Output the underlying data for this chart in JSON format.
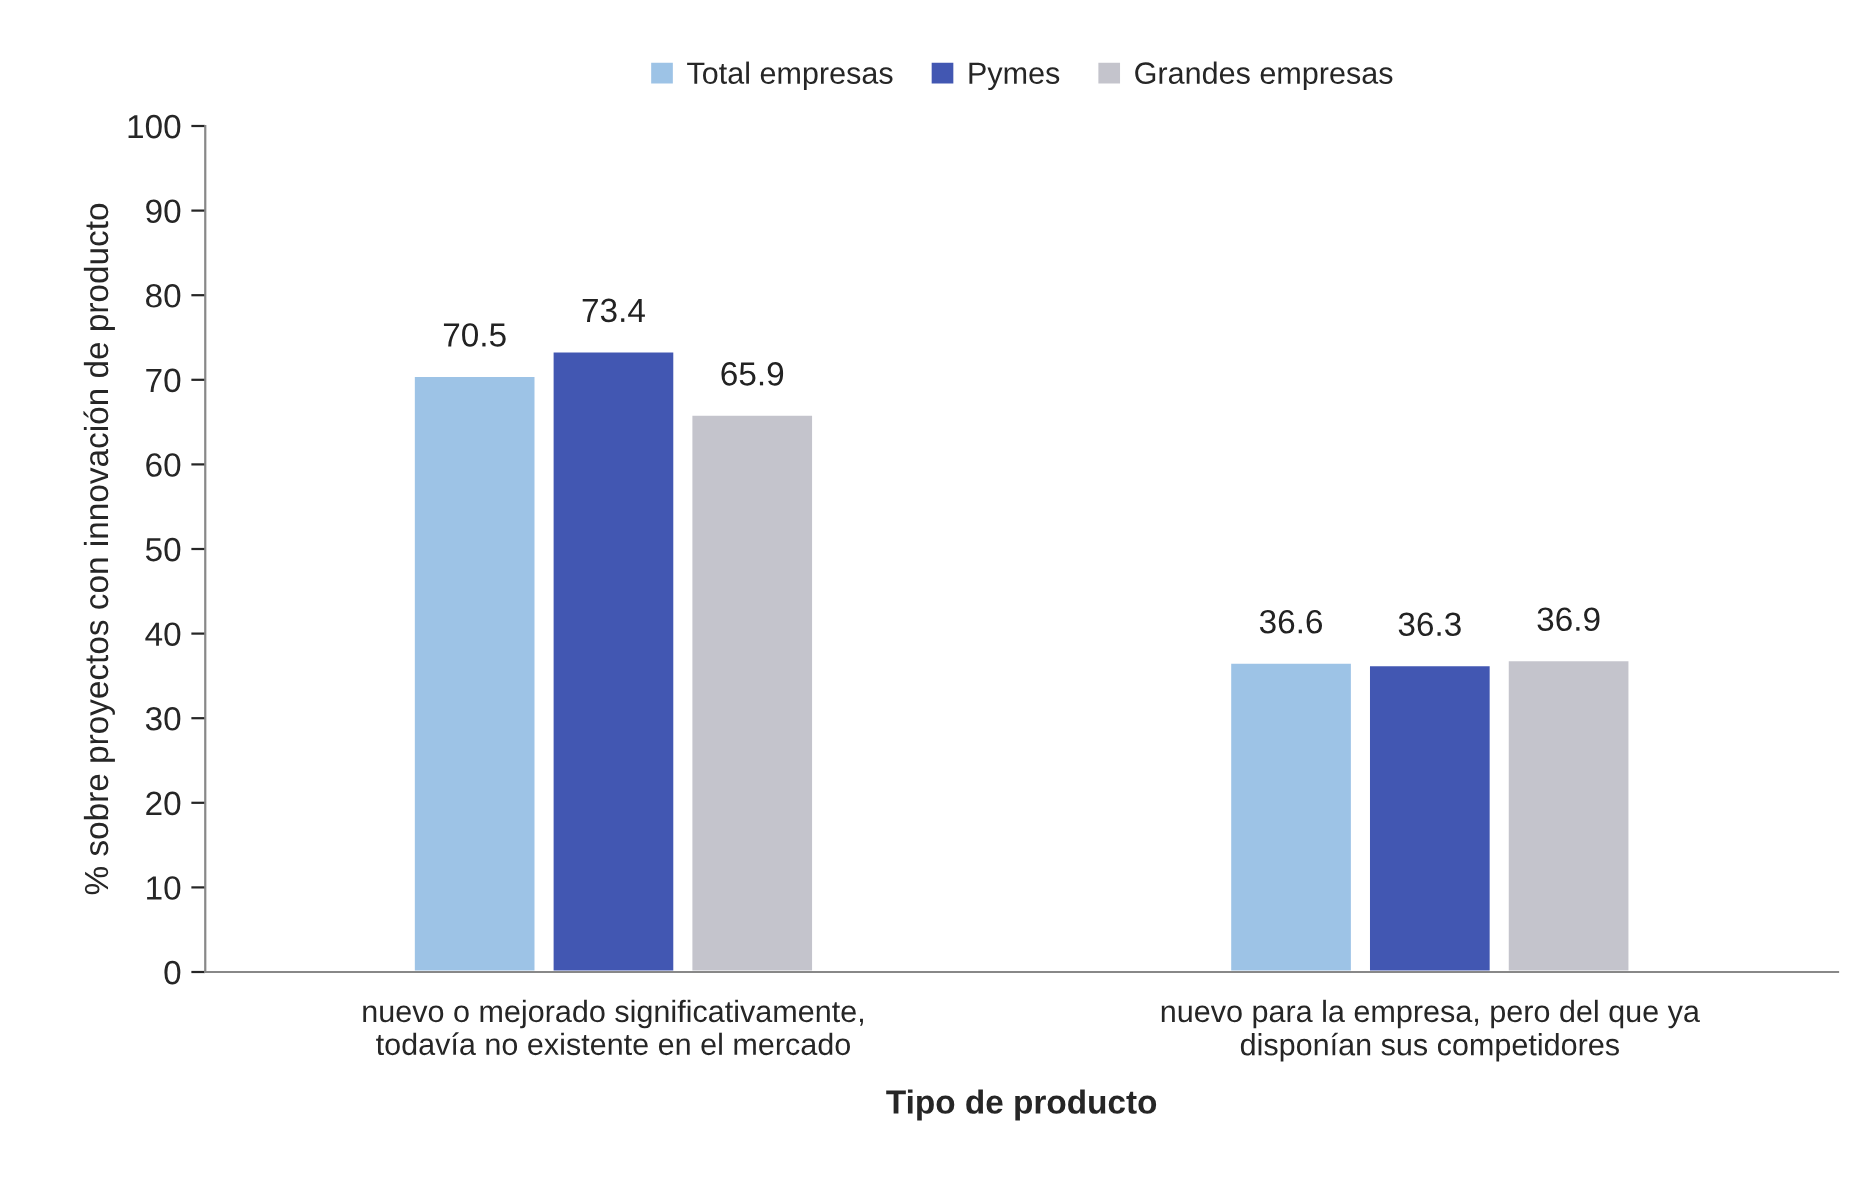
{
  "chart_data": {
    "type": "bar",
    "xlabel": "Tipo de producto",
    "ylabel": "% sobre proyectos con innovación de producto",
    "categories": [
      "nuevo o mejorado significativamente,\ntodavía no existente en el mercado",
      "nuevo para la empresa, pero del que ya\ndisponían sus competidores"
    ],
    "series": [
      {
        "name": "Total empresas",
        "color": "#9dc3e6",
        "values": [
          70.5,
          36.6
        ]
      },
      {
        "name": "Pymes",
        "color": "#4257b2",
        "values": [
          73.4,
          36.3
        ]
      },
      {
        "name": "Grandes empresas",
        "color": "#c4c4cc",
        "values": [
          65.9,
          36.9
        ]
      }
    ],
    "ylim": [
      0,
      100
    ],
    "yticks": [
      0,
      10,
      20,
      30,
      40,
      50,
      60,
      70,
      80,
      90,
      100
    ],
    "data_labels": true,
    "grid": false,
    "legend": "top"
  }
}
